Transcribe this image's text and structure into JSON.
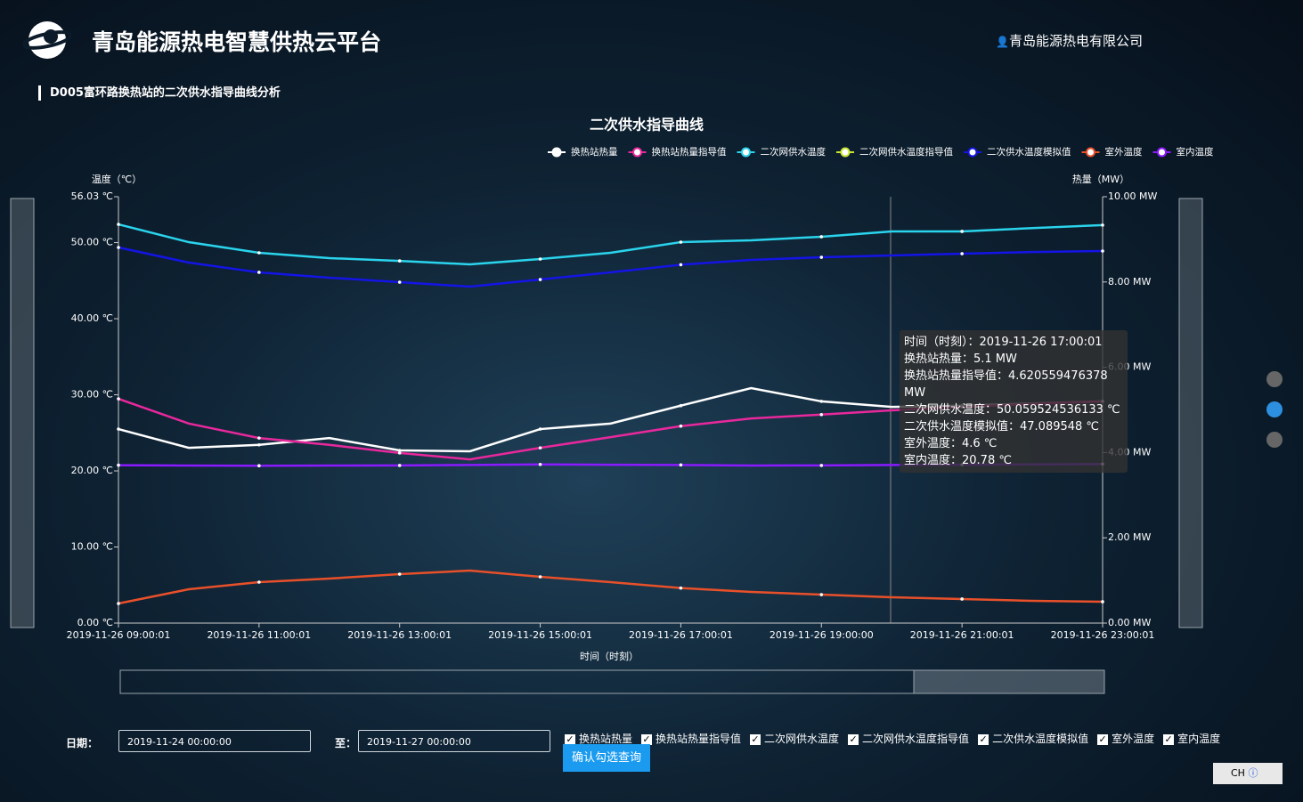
{
  "header": {
    "title": "青岛能源热电智慧供热云平台",
    "user": "青岛能源热电有限公司"
  },
  "section_title": "D005富环路换热站的二次供水指导曲线分析",
  "chart_data": {
    "type": "line",
    "title": "二次供水指导曲线",
    "y_label": "温度（℃）",
    "y2_label": "热量（MW）",
    "x_label": "时间（时刻）",
    "categories": [
      "2019-11-26 09:00:01",
      null,
      "2019-11-26 11:00:01",
      null,
      "2019-11-26 13:00:01",
      null,
      "2019-11-26 15:00:01",
      null,
      "2019-11-26 17:00:01",
      null,
      "2019-11-26 19:00:00",
      null,
      "2019-11-26 21:00:01",
      null,
      "2019-11-26 23:00:01"
    ],
    "ylim": [
      0,
      56.03
    ],
    "yticks": [
      {
        "value": 0,
        "label": "0.00 ℃"
      },
      {
        "value": 10,
        "label": "10.00 ℃"
      },
      {
        "value": 20,
        "label": "20.00 ℃"
      },
      {
        "value": 30,
        "label": "30.00 ℃"
      },
      {
        "value": 40,
        "label": "40.00 ℃"
      },
      {
        "value": 50,
        "label": "50.00 ℃"
      },
      {
        "value": 56.03,
        "label": "56.03 ℃"
      }
    ],
    "y2lim": [
      0,
      10
    ],
    "y2ticks": [
      {
        "value": 0,
        "label": "0.00 MW"
      },
      {
        "value": 2,
        "label": "2.00 MW"
      },
      {
        "value": 4,
        "label": "4.00 MW"
      },
      {
        "value": 6,
        "label": "6.00 MW"
      },
      {
        "value": 8,
        "label": "8.00 MW"
      },
      {
        "value": 10,
        "label": "10.00 MW"
      }
    ],
    "grid": false,
    "series": [
      {
        "name": "换热站热量",
        "color": "#ffffff",
        "axis": "y2",
        "values": [
          4.55,
          4.11,
          4.18,
          4.34,
          4.05,
          4.03,
          4.55,
          4.68,
          5.1,
          5.51,
          5.2,
          5.07,
          5.1,
          5.15,
          5.2
        ]
      },
      {
        "name": "换热站热量指导值",
        "color": "#e8289c",
        "axis": "y2",
        "values": [
          5.26,
          4.68,
          4.34,
          4.18,
          3.99,
          3.84,
          4.11,
          4.36,
          4.62,
          4.8,
          4.89,
          4.99,
          5.07,
          5.14,
          5.2
        ]
      },
      {
        "name": "二次网供水温度",
        "color": "#2ad4ec",
        "values": [
          52.4,
          50.06,
          48.66,
          47.96,
          47.6,
          47.14,
          47.84,
          48.66,
          50.06,
          50.3,
          50.77,
          51.47,
          51.47,
          51.9,
          52.3
        ]
      },
      {
        "name": "二次网供水温度指导值",
        "color": "#c8e632",
        "values": [
          null,
          null,
          null,
          null,
          null,
          null,
          null,
          null,
          null,
          null,
          null,
          null,
          null,
          null,
          null
        ]
      },
      {
        "name": "二次供水温度模拟值",
        "color": "#1414e6",
        "values": [
          49.36,
          47.37,
          46.09,
          45.39,
          44.8,
          44.21,
          45.15,
          46.09,
          47.09,
          47.72,
          48.07,
          48.31,
          48.54,
          48.77,
          48.89
        ]
      },
      {
        "name": "室外温度",
        "color": "#e8502a",
        "values": [
          2.57,
          4.44,
          5.38,
          5.85,
          6.43,
          6.9,
          6.08,
          5.38,
          4.6,
          4.09,
          3.74,
          3.39,
          3.16,
          2.92,
          2.81
        ]
      },
      {
        "name": "室内温度",
        "color": "#8a1aff",
        "values": [
          20.75,
          20.7,
          20.68,
          20.7,
          20.72,
          20.78,
          20.85,
          20.8,
          20.78,
          20.7,
          20.72,
          20.78,
          20.82,
          20.85,
          20.9
        ]
      }
    ],
    "tooltip": [
      "时间（时刻）：2019-11-26 17:00:01",
      "换热站热量：5.1 MW",
      "换热站热量指导值：4.620559476378 MW",
      "二次网供水温度：50.059524536133 ℃",
      "二次供水温度模拟值：47.089548 ℃",
      "室外温度：4.6 ℃",
      "室内温度：20.78 ℃"
    ]
  },
  "form": {
    "date_label": "日期：",
    "start": "2019-11-24 00:00:00",
    "to_label": "至：",
    "end": "2019-11-27 00:00:00",
    "button": "确认勾选查询"
  },
  "ime": "CH"
}
